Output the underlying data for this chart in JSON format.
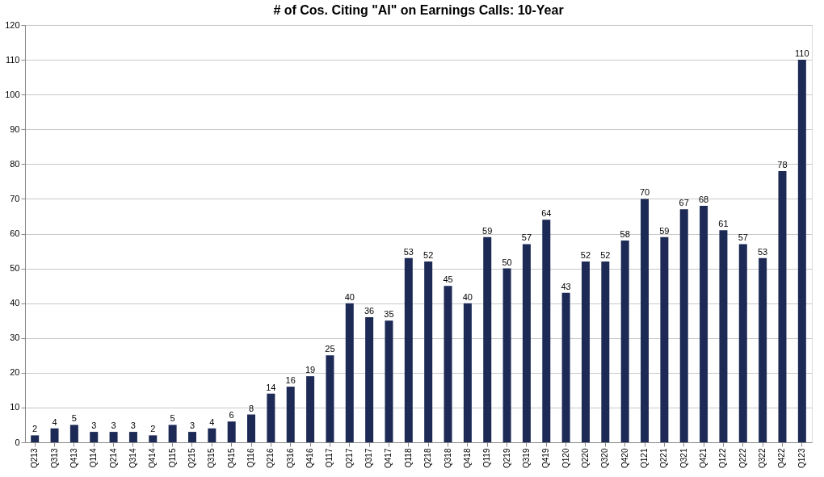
{
  "chart_data": {
    "type": "bar",
    "title": "# of Cos. Citing \"AI\" on Earnings Calls: 10-Year",
    "categories": [
      "Q213",
      "Q313",
      "Q413",
      "Q114",
      "Q214",
      "Q314",
      "Q414",
      "Q115",
      "Q215",
      "Q315",
      "Q415",
      "Q116",
      "Q216",
      "Q316",
      "Q416",
      "Q117",
      "Q217",
      "Q317",
      "Q417",
      "Q118",
      "Q218",
      "Q318",
      "Q418",
      "Q119",
      "Q219",
      "Q319",
      "Q419",
      "Q120",
      "Q220",
      "Q320",
      "Q420",
      "Q121",
      "Q221",
      "Q321",
      "Q421",
      "Q122",
      "Q222",
      "Q322",
      "Q422",
      "Q123"
    ],
    "values": [
      2,
      4,
      5,
      3,
      3,
      3,
      2,
      5,
      3,
      4,
      6,
      8,
      14,
      16,
      19,
      25,
      40,
      36,
      35,
      53,
      52,
      45,
      40,
      59,
      50,
      57,
      64,
      43,
      52,
      52,
      58,
      70,
      59,
      67,
      68,
      61,
      57,
      53,
      78,
      110
    ],
    "color": "#1c2a55",
    "ylim": [
      0,
      120
    ],
    "yticks": [
      0,
      10,
      20,
      30,
      40,
      50,
      60,
      70,
      80,
      90,
      100,
      110,
      120
    ],
    "grid": "y",
    "data_labels": true
  }
}
